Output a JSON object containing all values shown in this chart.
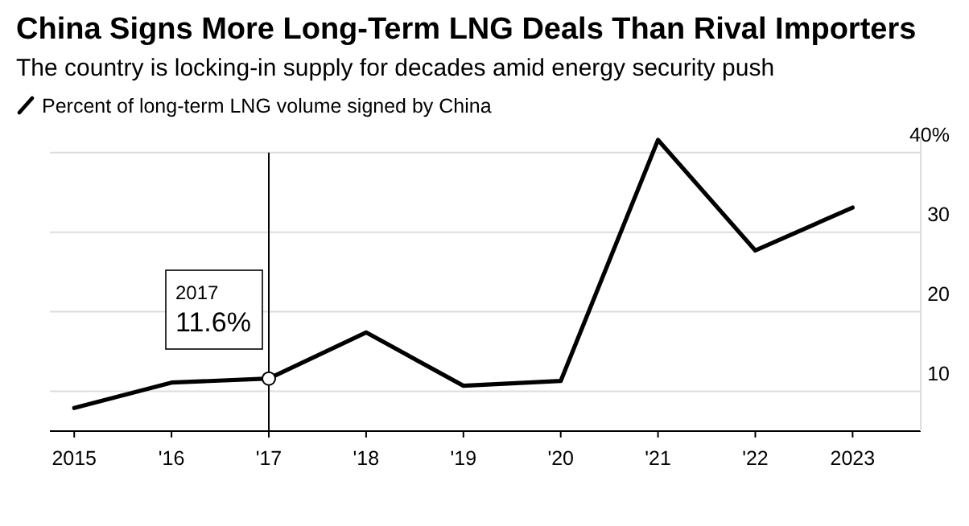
{
  "chart_data": {
    "type": "line",
    "title": "China Signs More Long-Term LNG Deals Than Rival Importers",
    "subtitle": "The country is locking-in supply for decades amid energy security push",
    "x": [
      2015,
      2016,
      2017,
      2018,
      2019,
      2020,
      2021,
      2022,
      2023
    ],
    "series": [
      {
        "name": "Percent of long-term LNG volume signed by China",
        "color": "#000000",
        "values": [
          7.9,
          11.1,
          11.6,
          17.4,
          10.7,
          11.3,
          41.6,
          27.7,
          33.1
        ]
      }
    ],
    "xlim": [
      2014.75,
      2023.7
    ],
    "xticks": [
      {
        "value": 2015,
        "label": "2015"
      },
      {
        "value": 2016,
        "label": "'16"
      },
      {
        "value": 2017,
        "label": "'17"
      },
      {
        "value": 2018,
        "label": "'18"
      },
      {
        "value": 2019,
        "label": "'19"
      },
      {
        "value": 2020,
        "label": "'20"
      },
      {
        "value": 2021,
        "label": "'21"
      },
      {
        "value": 2022,
        "label": "'22"
      },
      {
        "value": 2023,
        "label": "2023"
      }
    ],
    "ylim": [
      5,
      42
    ],
    "yticks": [
      {
        "value": 10,
        "label": "10"
      },
      {
        "value": 20,
        "label": "20"
      },
      {
        "value": 30,
        "label": "30"
      },
      {
        "value": 40,
        "label": "40%"
      }
    ],
    "ref_lines": [
      {
        "axis": "x",
        "value": 2017,
        "color": "#000000"
      }
    ],
    "annotations": [
      "2017",
      "11.6%"
    ],
    "grid": "y",
    "legend": "top left",
    "line_style": "solid",
    "marker": "none"
  }
}
